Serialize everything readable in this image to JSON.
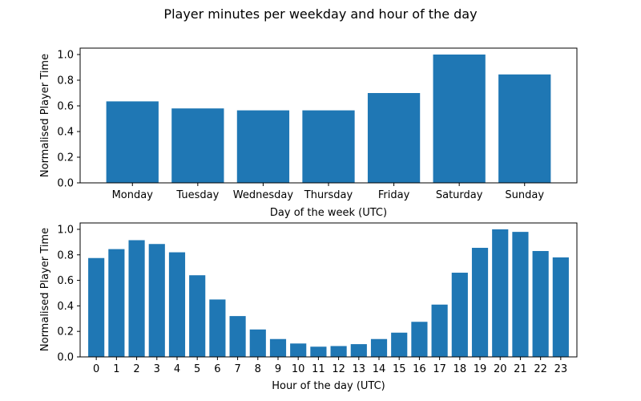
{
  "figure": {
    "title": "Player minutes per weekday and hour of the day",
    "bar_color": "#1f77b4"
  },
  "chart_data": [
    {
      "type": "bar",
      "categories": [
        "Monday",
        "Tuesday",
        "Wednesday",
        "Thursday",
        "Friday",
        "Saturday",
        "Sunday"
      ],
      "values": [
        0.635,
        0.58,
        0.565,
        0.565,
        0.7,
        1.0,
        0.845
      ],
      "xlabel": "Day of the week (UTC)",
      "ylabel": "Normalised Player Time",
      "ylim": [
        0,
        1.05
      ],
      "yticks": [
        "0.0",
        "0.2",
        "0.4",
        "0.6",
        "0.8",
        "1.0"
      ]
    },
    {
      "type": "bar",
      "categories": [
        "0",
        "1",
        "2",
        "3",
        "4",
        "5",
        "6",
        "7",
        "8",
        "9",
        "10",
        "11",
        "12",
        "13",
        "14",
        "15",
        "16",
        "17",
        "18",
        "19",
        "20",
        "21",
        "22",
        "23"
      ],
      "values": [
        0.775,
        0.845,
        0.915,
        0.885,
        0.82,
        0.64,
        0.45,
        0.32,
        0.215,
        0.14,
        0.105,
        0.08,
        0.085,
        0.1,
        0.14,
        0.19,
        0.275,
        0.41,
        0.66,
        0.855,
        1.0,
        0.98,
        0.83,
        0.78
      ],
      "xlabel": "Hour of the day (UTC)",
      "ylabel": "Normalised Player Time",
      "ylim": [
        0,
        1.05
      ],
      "yticks": [
        "0.0",
        "0.2",
        "0.4",
        "0.6",
        "0.8",
        "1.0"
      ]
    }
  ]
}
